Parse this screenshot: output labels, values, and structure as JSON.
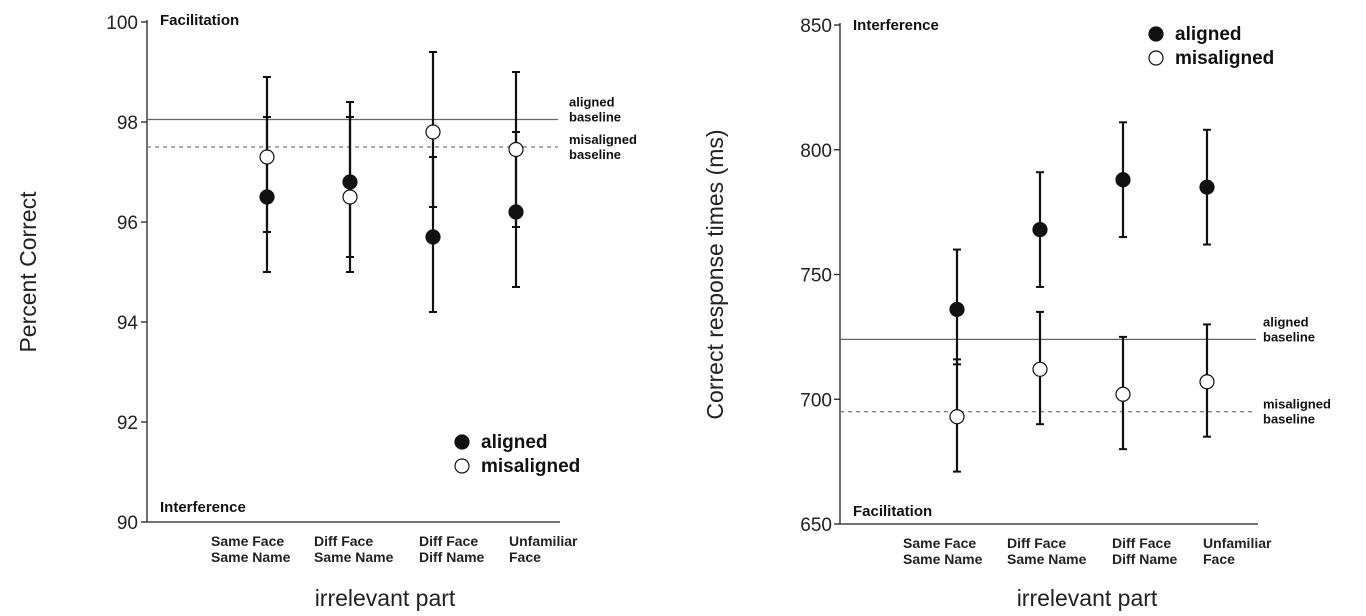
{
  "chart_data": [
    {
      "type": "scatter",
      "error_bars": true,
      "ylabel": "Percent Correct",
      "xlabel": "irrelevant part",
      "ylim": [
        90,
        100
      ],
      "yticks": [
        "90",
        "92",
        "94",
        "96",
        "98",
        "100"
      ],
      "categories": [
        [
          "Same Face",
          "Same Name"
        ],
        [
          "Diff Face",
          "Same Name"
        ],
        [
          "Diff Face",
          "Diff Name"
        ],
        [
          "Unfamiliar",
          "Face"
        ]
      ],
      "corner_top": "Facilitation",
      "corner_bottom": "Interference",
      "legend": {
        "position": "bottom-right",
        "aligned": "aligned",
        "misaligned": "misaligned"
      },
      "baselines": {
        "aligned": {
          "value": 98.05,
          "label": [
            "aligned",
            "baseline"
          ]
        },
        "misaligned": {
          "value": 97.5,
          "label": [
            "misaligned",
            "baseline"
          ]
        }
      },
      "series": [
        {
          "name": "aligned",
          "values": [
            96.5,
            96.8,
            95.7,
            96.2
          ],
          "err_low": [
            95.0,
            95.3,
            94.2,
            94.7
          ],
          "err_high": [
            98.1,
            98.1,
            97.3,
            97.8
          ]
        },
        {
          "name": "misaligned",
          "values": [
            97.3,
            96.5,
            97.8,
            97.45
          ],
          "err_low": [
            95.8,
            95.0,
            96.3,
            95.9
          ],
          "err_high": [
            98.9,
            98.4,
            99.4,
            99.0
          ]
        }
      ],
      "colors": {
        "aligned": "#111111",
        "misaligned": "#ffffff"
      }
    },
    {
      "type": "scatter",
      "error_bars": true,
      "ylabel": "Correct response times (ms)",
      "xlabel": "irrelevant part",
      "ylim": [
        650,
        850
      ],
      "yticks": [
        "650",
        "700",
        "750",
        "800",
        "850"
      ],
      "categories": [
        [
          "Same Face",
          "Same Name"
        ],
        [
          "Diff Face",
          "Same Name"
        ],
        [
          "Diff Face",
          "Diff Name"
        ],
        [
          "Unfamiliar",
          "Face"
        ]
      ],
      "corner_top": "Interference",
      "corner_bottom": "Facilitation",
      "legend": {
        "position": "top-right",
        "aligned": "aligned",
        "misaligned": "misaligned"
      },
      "baselines": {
        "aligned": {
          "value": 724,
          "label": [
            "aligned",
            "baseline"
          ]
        },
        "misaligned": {
          "value": 695,
          "label": [
            "misaligned",
            "baseline"
          ]
        }
      },
      "series": [
        {
          "name": "aligned",
          "values": [
            736,
            768,
            788,
            785
          ],
          "err_low": [
            714,
            745,
            765,
            762
          ],
          "err_high": [
            760,
            791,
            811,
            808
          ]
        },
        {
          "name": "misaligned",
          "values": [
            693,
            712,
            702,
            707
          ],
          "err_low": [
            671,
            690,
            680,
            685
          ],
          "err_high": [
            716,
            735,
            725,
            730
          ]
        }
      ],
      "colors": {
        "aligned": "#111111",
        "misaligned": "#ffffff"
      }
    }
  ]
}
